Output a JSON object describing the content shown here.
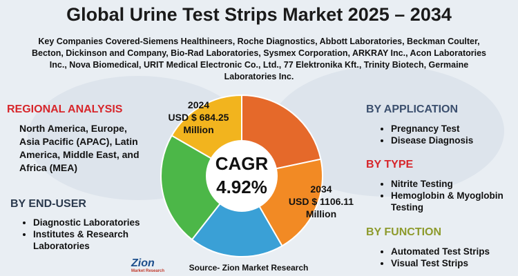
{
  "title": "Global Urine Test Strips Market 2025 – 2034",
  "subtitle": "Key Companies Covered-Siemens Healthineers, Roche Diagnostics, Abbott Laboratories, Beckman Coulter, Becton, Dickinson and Company, Bio-Rad Laboratories, Sysmex Corporation, ARKRAY Inc., Acon Laboratories Inc., Nova Biomedical, URIT Medical Electronic Co., Ltd., 77 Elektronika Kft., Trinity Biotech, Germaine Laboratories Inc.",
  "regional": {
    "heading": "REGIONAL ANALYSIS",
    "text": "North America, Europe, Asia Pacific (APAC), Latin America, Middle East, and Africa (MEA)"
  },
  "end_user": {
    "heading": "BY END-USER",
    "items": [
      "Diagnostic Laboratories",
      "Institutes & Research Laboratories"
    ]
  },
  "center": {
    "start": [
      "2024",
      "USD $ 684.25",
      "Million"
    ],
    "cagr": [
      "CAGR",
      "4.92%"
    ],
    "end": [
      "2034",
      "USD $ 1106.11",
      "Million"
    ]
  },
  "application": {
    "heading": "BY APPLICATION",
    "items": [
      "Pregnancy Test",
      "Disease Diagnosis"
    ]
  },
  "type": {
    "heading": "BY TYPE",
    "items": [
      "Nitrite Testing",
      "Hemoglobin & Myoglobin Testing"
    ]
  },
  "function": {
    "heading": "BY FUNCTION",
    "items": [
      "Automated Test Strips",
      "Visual Test Strips"
    ]
  },
  "source": "Source- Zion Market Research",
  "logo": {
    "name": "Zion",
    "tagline": "Market Research"
  }
}
